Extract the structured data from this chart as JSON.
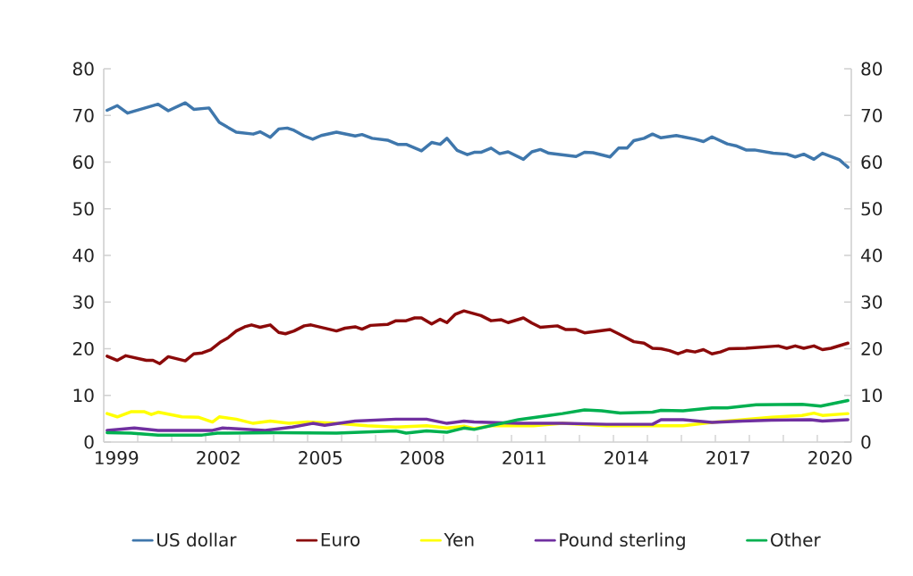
{
  "chart_data": {
    "type": "line",
    "xlim": [
      1999,
      2021
    ],
    "ylim": [
      0,
      80
    ],
    "yticks": [
      0,
      10,
      20,
      30,
      40,
      50,
      60,
      70,
      80
    ],
    "y2lim": [
      0,
      80
    ],
    "y2ticks": [
      0,
      10,
      20,
      30,
      40,
      50,
      60,
      70,
      80
    ],
    "xticks": [
      {
        "value": 1999.375,
        "label": "1999"
      },
      {
        "value": 2002.375,
        "label": "2002"
      },
      {
        "value": 2005.375,
        "label": "2005"
      },
      {
        "value": 2008.375,
        "label": "2008"
      },
      {
        "value": 2011.375,
        "label": "2011"
      },
      {
        "value": 2014.375,
        "label": "2014"
      },
      {
        "value": 2017.375,
        "label": "2017"
      },
      {
        "value": 2020.375,
        "label": "2020"
      },
      {
        "value": 2000,
        "label": null
      },
      {
        "value": 2001,
        "label": null
      },
      {
        "value": 2002,
        "label": null
      },
      {
        "value": 2003,
        "label": null
      },
      {
        "value": 2004,
        "label": null
      },
      {
        "value": 2005,
        "label": null
      },
      {
        "value": 2006,
        "label": null
      },
      {
        "value": 2007,
        "label": null
      },
      {
        "value": 2008,
        "label": null
      },
      {
        "value": 2009,
        "label": null
      },
      {
        "value": 2010,
        "label": null
      },
      {
        "value": 2011,
        "label": null
      },
      {
        "value": 2012,
        "label": null
      },
      {
        "value": 2013,
        "label": null
      },
      {
        "value": 2014,
        "label": null
      },
      {
        "value": 2015,
        "label": null
      },
      {
        "value": 2016,
        "label": null
      },
      {
        "value": 2017,
        "label": null
      },
      {
        "value": 2018,
        "label": null
      },
      {
        "value": 2019,
        "label": null
      },
      {
        "value": 2020,
        "label": null
      }
    ],
    "legend": "bottom",
    "grid": false,
    "series": [
      {
        "name": "US dollar",
        "color": "#3f77ac",
        "x": [
          1999.1,
          1999.4,
          1999.7,
          2000.6,
          2000.9,
          2001.4,
          2001.65,
          2002.1,
          2002.4,
          2002.9,
          2003.4,
          2003.6,
          2003.9,
          2004.15,
          2004.4,
          2004.6,
          2004.9,
          2005.15,
          2005.4,
          2005.85,
          2006.4,
          2006.6,
          2006.9,
          2007.35,
          2007.65,
          2007.9,
          2008.35,
          2008.65,
          2008.9,
          2009.1,
          2009.4,
          2009.7,
          2009.9,
          2010.1,
          2010.4,
          2010.65,
          2010.9,
          2011.35,
          2011.6,
          2011.85,
          2012.1,
          2012.9,
          2013.15,
          2013.4,
          2013.9,
          2014.15,
          2014.4,
          2014.6,
          2014.9,
          2015.15,
          2015.4,
          2015.85,
          2016.4,
          2016.65,
          2016.9,
          2017.35,
          2017.6,
          2017.9,
          2018.15,
          2018.7,
          2019.1,
          2019.35,
          2019.6,
          2019.9,
          2020.15,
          2020.65,
          2020.9
        ],
        "values": [
          71.1,
          72.1,
          70.5,
          72.4,
          71.0,
          72.7,
          71.3,
          71.6,
          68.5,
          66.4,
          66.0,
          66.5,
          65.3,
          67.1,
          67.3,
          66.8,
          65.6,
          64.9,
          65.7,
          66.4,
          65.6,
          65.9,
          65.1,
          64.7,
          63.8,
          63.8,
          62.4,
          64.2,
          63.8,
          65.1,
          62.5,
          61.6,
          62.1,
          62.1,
          63.0,
          61.8,
          62.2,
          60.6,
          62.2,
          62.7,
          61.9,
          61.2,
          62.1,
          62.0,
          61.1,
          63.0,
          63.0,
          64.6,
          65.1,
          66.0,
          65.2,
          65.7,
          64.9,
          64.4,
          65.4,
          63.9,
          63.5,
          62.6,
          62.6,
          61.9,
          61.7,
          61.1,
          61.7,
          60.6,
          61.9,
          60.5,
          58.9
        ]
      },
      {
        "name": "Euro",
        "color": "#8b0a0a",
        "x": [
          1999.1,
          1999.4,
          1999.65,
          2000.25,
          2000.45,
          2000.65,
          2000.9,
          2001.4,
          2001.65,
          2001.9,
          2002.15,
          2002.45,
          2002.65,
          2002.9,
          2003.15,
          2003.35,
          2003.6,
          2003.9,
          2004.15,
          2004.35,
          2004.6,
          2004.9,
          2005.1,
          2005.85,
          2006.1,
          2006.4,
          2006.6,
          2006.85,
          2007.35,
          2007.6,
          2007.9,
          2008.15,
          2008.35,
          2008.65,
          2008.9,
          2009.1,
          2009.35,
          2009.6,
          2010.1,
          2010.4,
          2010.7,
          2010.9,
          2011.35,
          2011.6,
          2011.85,
          2012.35,
          2012.6,
          2012.9,
          2013.15,
          2013.9,
          2014.15,
          2014.6,
          2014.9,
          2015.15,
          2015.4,
          2015.65,
          2015.9,
          2016.15,
          2016.4,
          2016.65,
          2016.9,
          2017.15,
          2017.4,
          2017.9,
          2018.85,
          2019.1,
          2019.35,
          2019.6,
          2019.9,
          2020.15,
          2020.4,
          2020.9
        ],
        "values": [
          18.4,
          17.5,
          18.5,
          17.5,
          17.5,
          16.8,
          18.3,
          17.4,
          18.9,
          19.1,
          19.8,
          21.5,
          22.3,
          23.8,
          24.7,
          25.1,
          24.6,
          25.1,
          23.5,
          23.2,
          23.8,
          24.9,
          25.1,
          23.8,
          24.4,
          24.7,
          24.2,
          25.0,
          25.2,
          26.0,
          26.0,
          26.6,
          26.6,
          25.3,
          26.3,
          25.6,
          27.4,
          28.1,
          27.1,
          26.0,
          26.2,
          25.6,
          26.6,
          25.5,
          24.6,
          24.9,
          24.1,
          24.1,
          23.4,
          24.1,
          23.2,
          21.5,
          21.2,
          20.1,
          20.0,
          19.6,
          18.9,
          19.6,
          19.3,
          19.8,
          18.9,
          19.3,
          20.0,
          20.1,
          20.6,
          20.1,
          20.6,
          20.1,
          20.6,
          19.8,
          20.1,
          21.2
        ]
      },
      {
        "name": "Yen",
        "color": "#ffff00",
        "x": [
          1999.1,
          1999.4,
          1999.8,
          2000.2,
          2000.4,
          2000.6,
          2001.3,
          2001.8,
          2002.2,
          2002.4,
          2002.9,
          2003.4,
          2003.9,
          2004.45,
          2005.0,
          2005.85,
          2006.75,
          2007.6,
          2008.5,
          2009.1,
          2009.6,
          2009.9,
          2010.4,
          2011.65,
          2012.5,
          2013.8,
          2015.15,
          2016.05,
          2016.9,
          2017.8,
          2018.65,
          2019.55,
          2019.9,
          2020.15,
          2020.9
        ],
        "values": [
          6.1,
          5.4,
          6.5,
          6.5,
          5.9,
          6.4,
          5.4,
          5.3,
          4.3,
          5.4,
          4.9,
          4.0,
          4.5,
          4.0,
          4.3,
          4.0,
          3.5,
          3.2,
          3.5,
          3.0,
          3.4,
          2.9,
          3.5,
          3.5,
          4.0,
          3.5,
          3.5,
          3.5,
          4.2,
          4.8,
          5.3,
          5.7,
          6.2,
          5.7,
          6.1
        ]
      },
      {
        "name": "Pound sterling",
        "color": "#7030a0",
        "x": [
          1999.1,
          1999.9,
          2000.6,
          2002.2,
          2002.5,
          2003.75,
          2004.55,
          2005.15,
          2005.5,
          2006.4,
          2007.6,
          2008.5,
          2009.1,
          2009.6,
          2009.9,
          2011.2,
          2012.5,
          2013.8,
          2015.15,
          2015.4,
          2016.05,
          2016.9,
          2017.8,
          2018.65,
          2019.8,
          2020.15,
          2020.9
        ],
        "values": [
          2.5,
          3.0,
          2.5,
          2.5,
          3.0,
          2.5,
          3.2,
          4.0,
          3.6,
          4.5,
          4.9,
          4.9,
          4.0,
          4.5,
          4.3,
          4.0,
          4.0,
          3.8,
          3.8,
          4.8,
          4.8,
          4.2,
          4.5,
          4.7,
          4.8,
          4.5,
          4.8
        ]
      },
      {
        "name": "Other",
        "color": "#00b050",
        "x": [
          1999.1,
          1999.8,
          2000.6,
          2001.9,
          2002.35,
          2004.1,
          2005.85,
          2007.6,
          2007.9,
          2008.5,
          2009.1,
          2009.6,
          2009.9,
          2011.2,
          2012.1,
          2012.5,
          2013.15,
          2013.65,
          2014.2,
          2015.15,
          2015.4,
          2016.05,
          2016.9,
          2017.35,
          2018.2,
          2019.55,
          2020.1,
          2020.9
        ],
        "values": [
          2.0,
          1.9,
          1.5,
          1.5,
          1.9,
          2.0,
          1.9,
          2.4,
          1.9,
          2.4,
          2.1,
          3.0,
          2.7,
          4.8,
          5.7,
          6.1,
          6.9,
          6.7,
          6.2,
          6.4,
          6.8,
          6.7,
          7.3,
          7.3,
          8.0,
          8.1,
          7.7,
          8.9
        ]
      }
    ]
  }
}
